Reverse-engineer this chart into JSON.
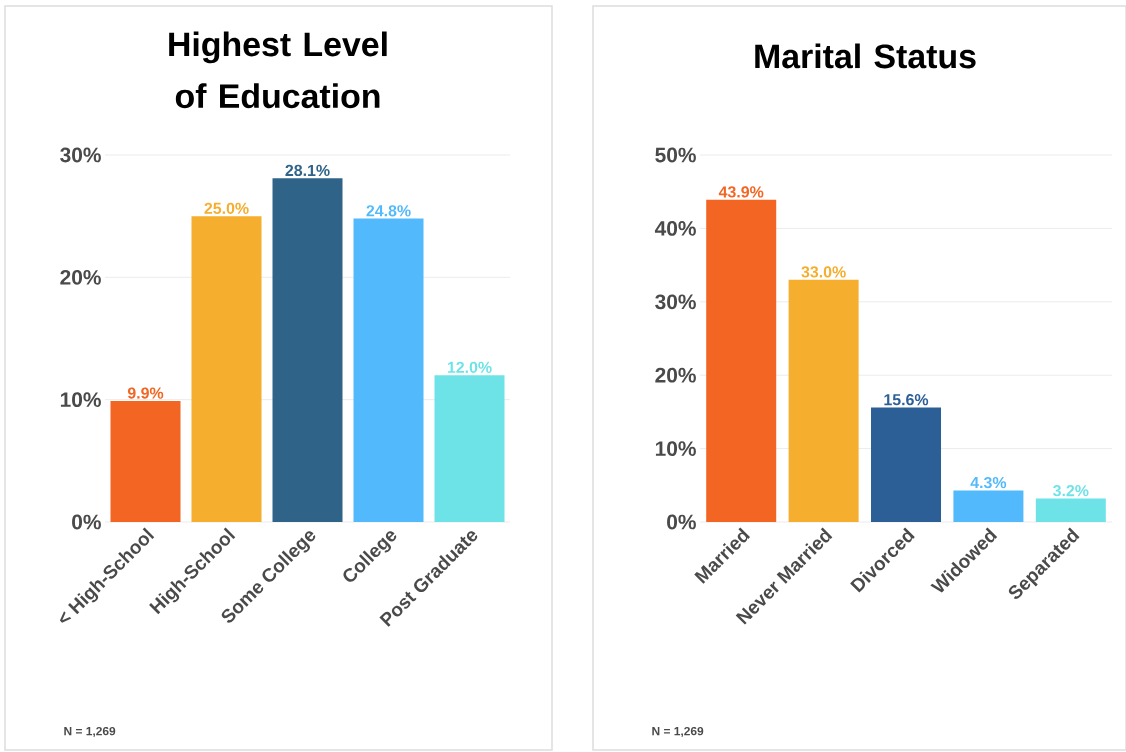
{
  "chart_data": [
    {
      "type": "bar",
      "title": "Highest Level of Education",
      "categories": [
        "< High-School",
        "High-School",
        "Some College",
        "College",
        "Post Graduate"
      ],
      "values": [
        9.9,
        25.0,
        28.1,
        24.8,
        12.0
      ],
      "colors": [
        "#f26522",
        "#f5ae2e",
        "#2f6388",
        "#52b9fc",
        "#6de3e8"
      ],
      "value_labels": [
        "9.9%",
        "25.0%",
        "28.1%",
        "24.8%",
        "12.0%"
      ],
      "ylim": [
        0,
        30
      ],
      "yticks": [
        {
          "value": 0,
          "label": "0%"
        },
        {
          "value": 10,
          "label": "10%"
        },
        {
          "value": 20,
          "label": "20%"
        },
        {
          "value": 30,
          "label": "30%"
        }
      ],
      "grid": "y",
      "annotations": [
        "N = 1,269"
      ]
    },
    {
      "type": "bar",
      "title": "Marital Status",
      "categories": [
        "Married",
        "Never Married",
        "Divorced",
        "Widowed",
        "Separated"
      ],
      "values": [
        43.9,
        33.0,
        15.6,
        4.3,
        3.2
      ],
      "colors": [
        "#f26522",
        "#f5ae2e",
        "#2c5f96",
        "#52b9fc",
        "#6de3e8"
      ],
      "value_labels": [
        "43.9%",
        "33.0%",
        "15.6%",
        "4.3%",
        "3.2%"
      ],
      "ylim": [
        0,
        50
      ],
      "yticks": [
        {
          "value": 0,
          "label": "0%"
        },
        {
          "value": 10,
          "label": "10%"
        },
        {
          "value": 20,
          "label": "20%"
        },
        {
          "value": 30,
          "label": "30%"
        },
        {
          "value": 40,
          "label": "40%"
        },
        {
          "value": 50,
          "label": "50%"
        }
      ],
      "grid": "y",
      "annotations": [
        "N = 1,269"
      ]
    }
  ]
}
